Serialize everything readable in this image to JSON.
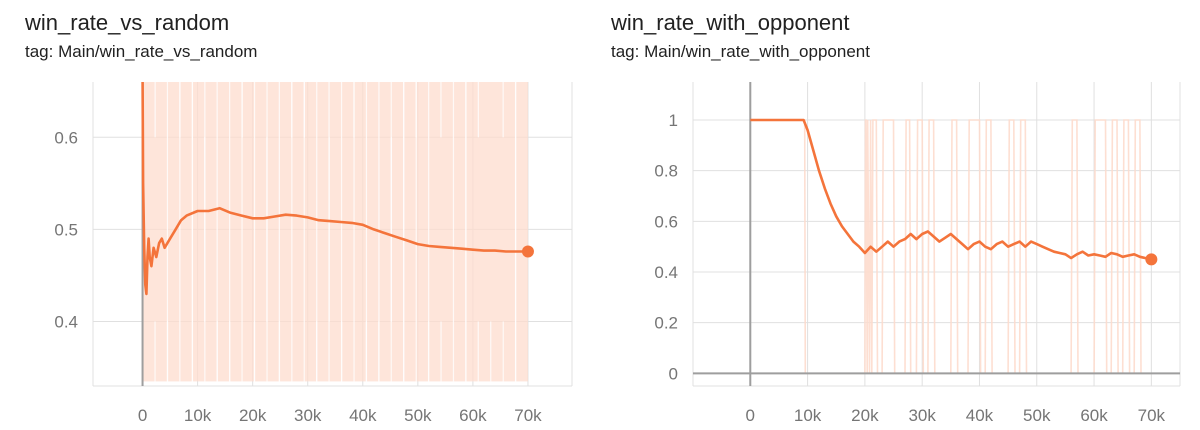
{
  "colors": {
    "series": "#f4743b",
    "raw": "#fddccd",
    "grid": "#e0e0e0",
    "axis": "#9e9e9e",
    "tick_text": "#757575"
  },
  "chart_data": [
    {
      "type": "line",
      "title": "win_rate_vs_random",
      "subtitle": "tag: Main/win_rate_vs_random",
      "xlabel": "",
      "ylabel": "",
      "xlim": [
        -9000,
        78000
      ],
      "ylim": [
        0.33,
        0.66
      ],
      "x_ticks": [
        0,
        10000,
        20000,
        30000,
        40000,
        50000,
        60000,
        70000
      ],
      "x_tick_labels": [
        "0",
        "10k",
        "20k",
        "30k",
        "40k",
        "50k",
        "60k",
        "70k"
      ],
      "y_ticks": [
        0.4,
        0.5,
        0.6
      ],
      "y_tick_labels": [
        "0.4",
        "0.5",
        "0.6"
      ],
      "grid": true,
      "raw_band": {
        "low": 0.335,
        "high": 0.66,
        "x_start": 0,
        "x_end": 70000
      },
      "series": [
        {
          "x": [
            0,
            100,
            300,
            500,
            700,
            900,
            1100,
            1300,
            1600,
            2000,
            2500,
            3000,
            3500,
            4000,
            5000,
            6000,
            7000,
            8000,
            10000,
            12000,
            14000,
            16000,
            18000,
            20000,
            22000,
            24000,
            26000,
            28000,
            30000,
            32000,
            34000,
            36000,
            38000,
            40000,
            42000,
            44000,
            46000,
            48000,
            50000,
            52000,
            54000,
            56000,
            58000,
            60000,
            62000,
            64000,
            66000,
            68000,
            70000
          ],
          "y": [
            0.66,
            0.55,
            0.48,
            0.44,
            0.43,
            0.47,
            0.49,
            0.47,
            0.46,
            0.48,
            0.47,
            0.485,
            0.49,
            0.48,
            0.49,
            0.5,
            0.51,
            0.515,
            0.52,
            0.52,
            0.523,
            0.518,
            0.515,
            0.512,
            0.512,
            0.514,
            0.516,
            0.515,
            0.513,
            0.51,
            0.509,
            0.508,
            0.507,
            0.505,
            0.5,
            0.496,
            0.492,
            0.488,
            0.484,
            0.482,
            0.481,
            0.48,
            0.479,
            0.478,
            0.477,
            0.477,
            0.476,
            0.476,
            0.476
          ]
        }
      ]
    },
    {
      "type": "line",
      "title": "win_rate_with_opponent",
      "subtitle": "tag: Main/win_rate_with_opponent",
      "xlabel": "",
      "ylabel": "",
      "xlim": [
        -10000,
        75000
      ],
      "ylim": [
        -0.05,
        1.15
      ],
      "x_ticks": [
        0,
        10000,
        20000,
        30000,
        40000,
        50000,
        60000,
        70000
      ],
      "x_tick_labels": [
        "0",
        "10k",
        "20k",
        "30k",
        "40k",
        "50k",
        "60k",
        "70k"
      ],
      "y_ticks": [
        0,
        0.2,
        0.4,
        0.6,
        0.8,
        1
      ],
      "y_tick_labels": [
        "0",
        "0.2",
        "0.4",
        "0.6",
        "0.8",
        "1"
      ],
      "grid": true,
      "raw_series": {
        "x": [
          0,
          9500,
          9600,
          9700,
          20000,
          20100,
          20200,
          20400,
          20500,
          20800,
          21000,
          21200,
          21400,
          22000,
          22200,
          22500,
          23000,
          23200,
          25000,
          25200,
          27000,
          27200,
          27800,
          28000,
          29000,
          29200,
          30000,
          30200,
          31000,
          31200,
          32000,
          32200,
          35000,
          35200,
          36000,
          36200,
          38000,
          38200,
          40000,
          40200,
          41000,
          41200,
          42000,
          42200,
          45000,
          45200,
          46000,
          46200,
          47000,
          47200,
          48000,
          48200,
          50000,
          50200,
          56000,
          56200,
          57000,
          57200,
          60000,
          60200,
          62000,
          62200,
          63000,
          63200,
          64000,
          64200,
          65000,
          65200,
          66000,
          66200,
          67000,
          67200,
          68000,
          68200,
          70000
        ],
        "y": [
          1,
          1,
          0,
          0,
          0,
          1,
          1,
          0,
          1,
          0,
          1,
          0,
          1,
          1,
          0,
          0,
          0,
          1,
          1,
          0,
          0,
          1,
          1,
          0,
          0,
          1,
          1,
          0,
          0,
          1,
          1,
          0,
          0,
          1,
          1,
          0,
          0,
          1,
          1,
          0,
          0,
          1,
          1,
          0,
          0,
          1,
          1,
          0,
          0,
          1,
          1,
          0,
          0,
          0,
          0,
          1,
          1,
          0,
          0,
          1,
          1,
          0,
          0,
          1,
          1,
          0,
          0,
          1,
          1,
          0,
          0,
          1,
          1,
          0,
          0
        ]
      },
      "series": [
        {
          "x": [
            0,
            9300,
            10000,
            11000,
            12000,
            13000,
            14000,
            15000,
            16000,
            17000,
            18000,
            19000,
            20000,
            21000,
            22000,
            23000,
            24000,
            25000,
            26000,
            27000,
            28000,
            29000,
            30000,
            31000,
            32000,
            33000,
            34000,
            35000,
            36000,
            37000,
            38000,
            39000,
            40000,
            41000,
            42000,
            43000,
            44000,
            45000,
            46000,
            47000,
            48000,
            49000,
            50000,
            51000,
            52000,
            53000,
            54000,
            55000,
            56000,
            57000,
            58000,
            59000,
            60000,
            61000,
            62000,
            63000,
            64000,
            65000,
            66000,
            67000,
            68000,
            69000,
            70000
          ],
          "y": [
            1,
            1,
            0.96,
            0.88,
            0.8,
            0.73,
            0.67,
            0.62,
            0.58,
            0.55,
            0.52,
            0.5,
            0.475,
            0.5,
            0.48,
            0.5,
            0.52,
            0.5,
            0.52,
            0.53,
            0.55,
            0.53,
            0.55,
            0.56,
            0.54,
            0.52,
            0.535,
            0.55,
            0.53,
            0.51,
            0.49,
            0.51,
            0.52,
            0.5,
            0.49,
            0.51,
            0.52,
            0.5,
            0.51,
            0.52,
            0.5,
            0.52,
            0.51,
            0.5,
            0.49,
            0.48,
            0.475,
            0.47,
            0.455,
            0.47,
            0.48,
            0.465,
            0.47,
            0.465,
            0.46,
            0.475,
            0.47,
            0.46,
            0.465,
            0.47,
            0.46,
            0.455,
            0.45
          ]
        }
      ]
    }
  ]
}
